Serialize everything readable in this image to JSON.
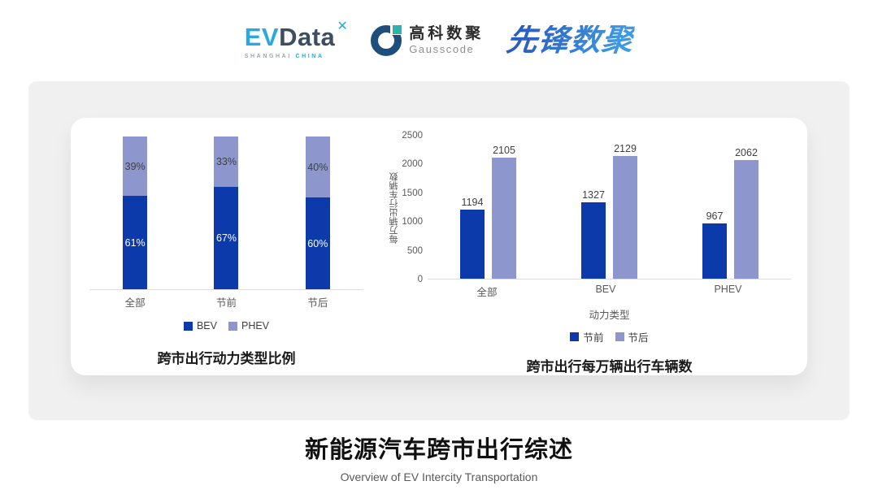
{
  "header": {
    "evdata": {
      "ev": "EV",
      "data": "Data",
      "star": "✕",
      "sub_left": "SHANGHAI",
      "sub_right": "CHINA"
    },
    "gausscode": {
      "cn": "高科数聚",
      "en": "Gausscode"
    },
    "xianfeng": {
      "text": "先锋数聚"
    }
  },
  "chart_data": [
    {
      "type": "bar",
      "variant": "stacked-percent",
      "title": "跨市出行动力类型比例",
      "categories": [
        "全部",
        "节前",
        "节后"
      ],
      "series": [
        {
          "name": "BEV",
          "color": "#0c3aab",
          "values": [
            61,
            67,
            60
          ],
          "labels": [
            "61%",
            "67%",
            "60%"
          ]
        },
        {
          "name": "PHEV",
          "color": "#8d97ce",
          "values": [
            39,
            33,
            40
          ],
          "labels": [
            "39%",
            "33%",
            "40%"
          ]
        }
      ],
      "legend_position": "bottom",
      "grid": false
    },
    {
      "type": "bar",
      "variant": "grouped",
      "title": "跨市出行每万辆出行车辆数",
      "categories": [
        "全部",
        "BEV",
        "PHEV"
      ],
      "xlabel": "动力类型",
      "ylabel": "每万辆出行车辆数",
      "ylim": [
        0,
        2500
      ],
      "yticks": [
        0,
        500,
        1000,
        1500,
        2000,
        2500
      ],
      "series": [
        {
          "name": "节前",
          "color": "#0c3aab",
          "values": [
            1194,
            1327,
            967
          ]
        },
        {
          "name": "节后",
          "color": "#8d97ce",
          "values": [
            2105,
            2129,
            2062
          ]
        }
      ],
      "legend_position": "bottom",
      "grid": false
    }
  ],
  "footer": {
    "title": "新能源汽车跨市出行综述",
    "subtitle": "Overview of EV Intercity Transportation"
  },
  "colors": {
    "bev_dark_blue": "#0c3aab",
    "phev_periwinkle": "#8d97ce",
    "card_gray": "#f0f0f1",
    "axis_text_gray": "#595959",
    "baseline_gray": "#dcdcdc",
    "evdata_blue": "#29a9e0",
    "evdata_slate": "#3d4e61",
    "gausscode_navy": "#1d4e7c",
    "gausscode_teal": "#2db3ab",
    "xianfeng_blue": "#3077d0"
  }
}
